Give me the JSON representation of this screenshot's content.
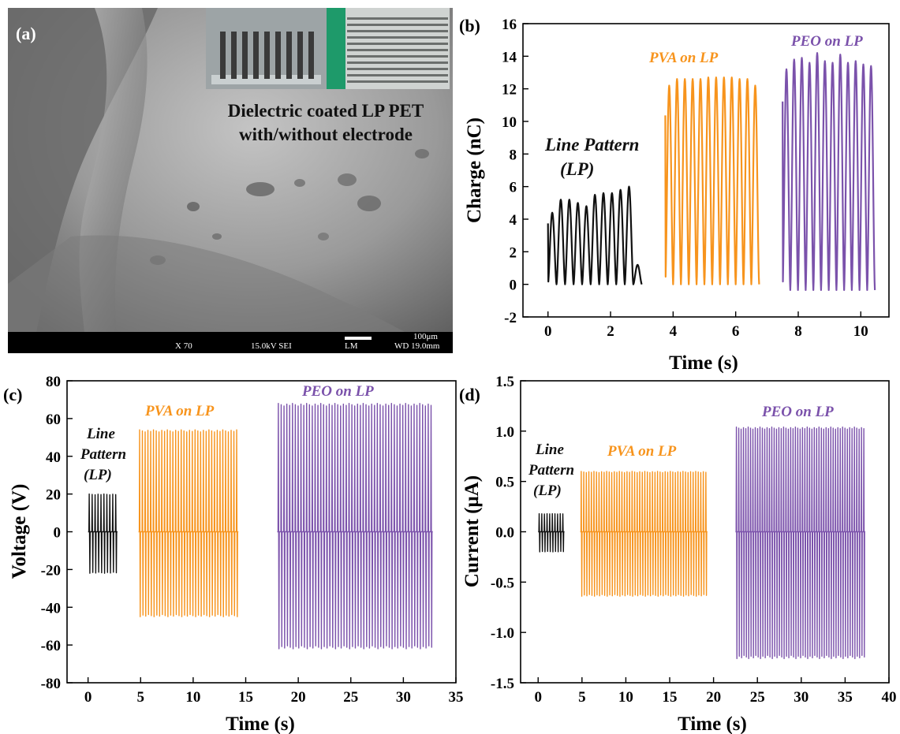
{
  "panel_a": {
    "label": "(a)",
    "caption_line1": "Dielectric coated LP PET",
    "caption_line2": "with/without electrode",
    "scale_text": "100μm",
    "info_bar": [
      "X 70",
      "15.0kV SEI",
      "LM",
      "WD 19.0mm"
    ]
  },
  "colors": {
    "lp": "#111111",
    "pva": "#f7941d",
    "peo": "#7b52ab"
  },
  "chart_data": [
    {
      "panel": "(b)",
      "type": "line",
      "xlabel": "Time (s)",
      "ylabel": "Charge (nC)",
      "xlim": [
        -0.8,
        10.9
      ],
      "ylim": [
        -2,
        16
      ],
      "xticks": [
        0,
        2,
        4,
        6,
        8,
        10
      ],
      "yticks": [
        -2,
        0,
        2,
        4,
        6,
        8,
        10,
        12,
        14,
        16
      ],
      "series": [
        {
          "name": "Line Pattern (LP)",
          "color": "#111111",
          "x_range": [
            0,
            3.0
          ],
          "cycles": 11,
          "peaks": [
            4.4,
            5.2,
            5.2,
            5.0,
            4.8,
            5.5,
            5.6,
            5.6,
            5.8,
            6.0,
            1.2
          ],
          "min": 0
        },
        {
          "name": "PVA on LP",
          "color": "#f7941d",
          "x_range": [
            3.75,
            6.75
          ],
          "cycles": 12,
          "peaks": [
            12.2,
            12.6,
            12.6,
            12.6,
            12.6,
            12.7,
            12.7,
            12.7,
            12.7,
            12.6,
            12.6,
            12.2
          ],
          "min": 0
        },
        {
          "name": "PEO on LP",
          "color": "#7b52ab",
          "x_range": [
            7.5,
            10.45
          ],
          "cycles": 12,
          "peaks": [
            13.2,
            13.8,
            13.9,
            13.6,
            14.2,
            13.7,
            13.6,
            14.1,
            13.6,
            13.7,
            13.5,
            13.4
          ],
          "min": -0.35
        }
      ],
      "annotations": [
        {
          "text": "Line Pattern",
          "color": "#111111"
        },
        {
          "text": "(LP)",
          "color": "#111111"
        },
        {
          "text": "PVA on LP",
          "color": "#f7941d"
        },
        {
          "text": "PEO on LP",
          "color": "#7b52ab"
        }
      ]
    },
    {
      "panel": "(c)",
      "type": "line",
      "xlabel": "Time (s)",
      "ylabel": "Voltage (V)",
      "xlim": [
        -2,
        35
      ],
      "ylim": [
        -80,
        80
      ],
      "xticks": [
        0,
        5,
        10,
        15,
        20,
        25,
        30,
        35
      ],
      "yticks": [
        -80,
        -60,
        -40,
        -20,
        0,
        20,
        40,
        60,
        80
      ],
      "series": [
        {
          "name": "Line Pattern (LP)",
          "color": "#111111",
          "x_range": [
            0,
            2.8
          ],
          "cycles": 10,
          "max": 20,
          "min": -22
        },
        {
          "name": "PVA on LP",
          "color": "#f7941d",
          "x_range": [
            4.8,
            14.3
          ],
          "cycles": 36,
          "max": 54,
          "min": -45
        },
        {
          "name": "PEO on LP",
          "color": "#7b52ab",
          "x_range": [
            18,
            32.8
          ],
          "cycles": 55,
          "max": 68,
          "min": -62
        }
      ],
      "annotations": [
        {
          "text": "Line",
          "color": "#111111"
        },
        {
          "text": "Pattern",
          "color": "#111111"
        },
        {
          "text": "(LP)",
          "color": "#111111"
        },
        {
          "text": "PVA on LP",
          "color": "#f7941d"
        },
        {
          "text": "PEO on LP",
          "color": "#7b52ab"
        }
      ]
    },
    {
      "panel": "(d)",
      "type": "line",
      "xlabel": "Time (s)",
      "ylabel": "Current (μA)",
      "xlim": [
        -2,
        40
      ],
      "ylim": [
        -1.5,
        1.5
      ],
      "xticks": [
        0,
        5,
        10,
        15,
        20,
        25,
        30,
        35,
        40
      ],
      "yticks": [
        -1.5,
        -1.0,
        -0.5,
        0.0,
        0.5,
        1.0,
        1.5
      ],
      "series": [
        {
          "name": "Line Pattern (LP)",
          "color": "#111111",
          "x_range": [
            0,
            3.0
          ],
          "cycles": 10,
          "max": 0.18,
          "min": -0.2
        },
        {
          "name": "PVA on LP",
          "color": "#f7941d",
          "x_range": [
            4.8,
            19.3
          ],
          "cycles": 50,
          "max": 0.6,
          "min": -0.64
        },
        {
          "name": "PEO on LP",
          "color": "#7b52ab",
          "x_range": [
            22.5,
            37.3
          ],
          "cycles": 55,
          "max": 1.04,
          "min": -1.26
        }
      ],
      "annotations": [
        {
          "text": "Line",
          "color": "#111111"
        },
        {
          "text": "Pattern",
          "color": "#111111"
        },
        {
          "text": "(LP)",
          "color": "#111111"
        },
        {
          "text": "PVA on LP",
          "color": "#f7941d"
        },
        {
          "text": "PEO on LP",
          "color": "#7b52ab"
        }
      ]
    }
  ]
}
